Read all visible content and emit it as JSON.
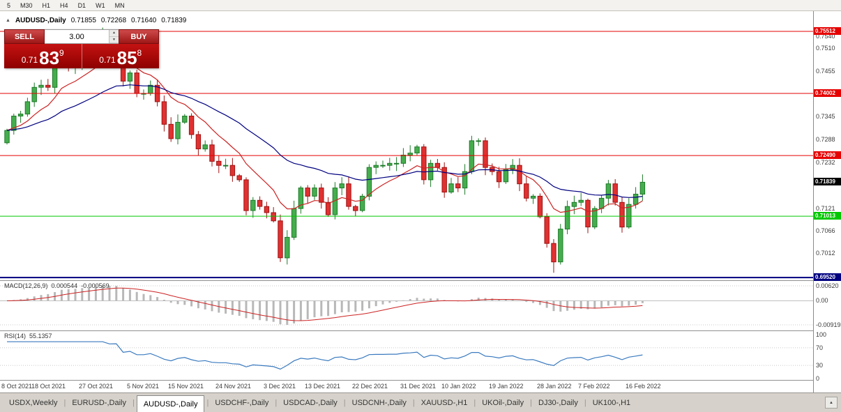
{
  "toolbar": {
    "timeframes": [
      "5",
      "M30",
      "H1",
      "H4",
      "D1",
      "W1",
      "MN"
    ]
  },
  "chart": {
    "collapse_icon": "▲",
    "symbol_period": "AUDUSD-,Daily",
    "open": "0.71855",
    "high": "0.72268",
    "low": "0.71640",
    "close": "0.71839"
  },
  "trade_panel": {
    "sell_label": "SELL",
    "buy_label": "BUY",
    "volume": "3.00",
    "sell_price": {
      "small": "0.71",
      "big": "83",
      "sup": "9"
    },
    "buy_price": {
      "small": "0.71",
      "big": "85",
      "sup": "8"
    }
  },
  "levels": [
    {
      "price": 0.75512,
      "label": "0.75512",
      "color": "#e60000",
      "width": 1
    },
    {
      "price": 0.74002,
      "label": "0.74002",
      "color": "#e60000",
      "width": 1
    },
    {
      "price": 0.7249,
      "label": "0.72490",
      "color": "#e60000",
      "width": 1
    },
    {
      "price": 0.71013,
      "label": "0.71013",
      "color": "#00c800",
      "width": 1
    },
    {
      "price": 0.6952,
      "label": "0.69520",
      "color": "#000080",
      "width": 2
    }
  ],
  "current_price": {
    "label": "0.71839",
    "price": 0.71839,
    "color": "#000000"
  },
  "price_axis_labels": [
    {
      "text": "0.7540",
      "price": 0.754
    },
    {
      "text": "0.7510",
      "price": 0.751
    },
    {
      "text": "0.7455",
      "price": 0.7455
    },
    {
      "text": "0.7345",
      "price": 0.7345
    },
    {
      "text": "0.7288",
      "price": 0.7288
    },
    {
      "text": "0.7232",
      "price": 0.7232
    },
    {
      "text": "0.7121",
      "price": 0.7121
    },
    {
      "text": "0.7066",
      "price": 0.7066
    },
    {
      "text": "0.7012",
      "price": 0.7012
    }
  ],
  "chart_data": {
    "type": "candlestick",
    "symbol": "AUDUSD-,Daily",
    "up_color": "#46ad4e",
    "down_color": "#e03131",
    "ma_fast": {
      "period": 10,
      "color": "#cc2222"
    },
    "ma_slow": {
      "period": 30,
      "color": "#000080"
    },
    "closes": [
      0.731,
      0.7345,
      0.735,
      0.738,
      0.7415,
      0.742,
      0.7415,
      0.7475,
      0.7515,
      0.7465,
      0.7465,
      0.749,
      0.75,
      0.7515,
      0.754,
      0.752,
      0.7525,
      0.743,
      0.745,
      0.74,
      0.74,
      0.742,
      0.738,
      0.7325,
      0.729,
      0.733,
      0.7345,
      0.73,
      0.7265,
      0.7275,
      0.7235,
      0.7225,
      0.7225,
      0.72,
      0.719,
      0.7115,
      0.714,
      0.7125,
      0.711,
      0.709,
      0.7,
      0.705,
      0.712,
      0.717,
      0.715,
      0.717,
      0.7135,
      0.7105,
      0.717,
      0.718,
      0.7125,
      0.7115,
      0.715,
      0.722,
      0.7225,
      0.7225,
      0.723,
      0.723,
      0.725,
      0.7255,
      0.727,
      0.719,
      0.723,
      0.722,
      0.716,
      0.718,
      0.717,
      0.721,
      0.7285,
      0.7285,
      0.722,
      0.721,
      0.7185,
      0.7215,
      0.7225,
      0.718,
      0.7145,
      0.715,
      0.71,
      0.7035,
      0.699,
      0.707,
      0.7125,
      0.7135,
      0.714,
      0.7075,
      0.712,
      0.7145,
      0.718,
      0.7135,
      0.7075,
      0.713,
      0.7155,
      0.7184
    ],
    "date_labels": [
      {
        "text": "8 Oct 2021",
        "bar": 0
      },
      {
        "text": "18 Oct 2021",
        "bar": 6
      },
      {
        "text": "27 Oct 2021",
        "bar": 13
      },
      {
        "text": "5 Nov 2021",
        "bar": 20
      },
      {
        "text": "15 Nov 2021",
        "bar": 26
      },
      {
        "text": "24 Nov 2021",
        "bar": 33
      },
      {
        "text": "3 Dec 2021",
        "bar": 40
      },
      {
        "text": "13 Dec 2021",
        "bar": 46
      },
      {
        "text": "22 Dec 2021",
        "bar": 53
      },
      {
        "text": "31 Dec 2021",
        "bar": 60
      },
      {
        "text": "10 Jan 2022",
        "bar": 66
      },
      {
        "text": "19 Jan 2022",
        "bar": 73
      },
      {
        "text": "28 Jan 2022",
        "bar": 80
      },
      {
        "text": "7 Feb 2022",
        "bar": 86
      },
      {
        "text": "16 Feb 2022",
        "bar": 93
      }
    ]
  },
  "macd": {
    "title": "MACD(12,26,9)",
    "value": "0.000544",
    "signal_value": "-0.000569",
    "axis_max": "0.00620",
    "axis_zero": "0.00",
    "axis_min": "-0.00919"
  },
  "rsi": {
    "title": "RSI(14)",
    "value": "55.1357",
    "axis": [
      "100",
      "70",
      "30",
      "0"
    ],
    "levels": [
      70,
      30
    ]
  },
  "tabs": {
    "items": [
      "USDX,Weekly",
      "EURUSD-,Daily",
      "AUDUSD-,Daily",
      "USDCHF-,Daily",
      "USDCAD-,Daily",
      "USDCNH-,Daily",
      "XAUUSD-,H1",
      "UKOil-,Daily",
      "DJ30-,Daily",
      "UK100-,H1"
    ],
    "active_index": 2
  }
}
